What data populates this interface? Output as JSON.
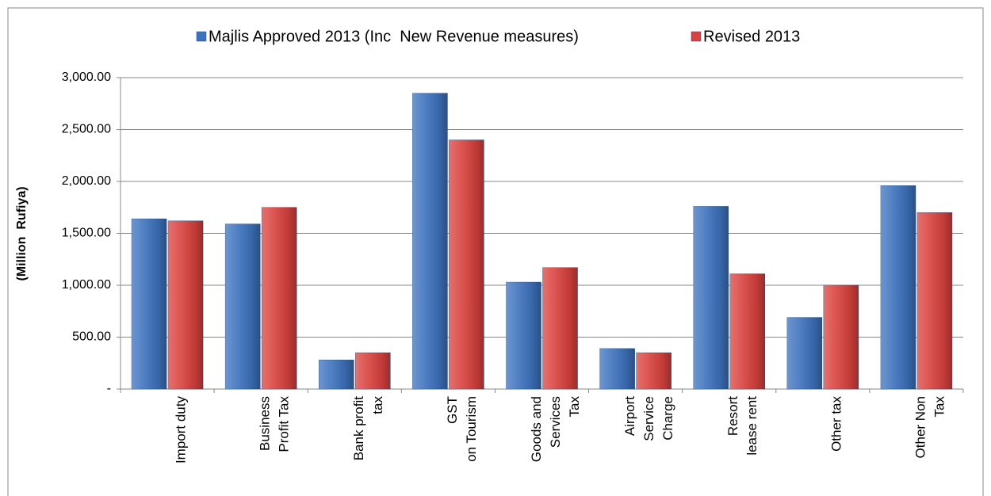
{
  "chart_data": {
    "type": "bar",
    "y_label": "(Million  Rufiya)",
    "categories": [
      [
        "Import duty"
      ],
      [
        "Business",
        "Profit Tax"
      ],
      [
        "Bank profit",
        "tax"
      ],
      [
        "GST",
        "on Tourism"
      ],
      [
        "Goods and",
        "Services",
        "Tax"
      ],
      [
        "Airport",
        "Service",
        "Charge"
      ],
      [
        "Resort",
        "lease rent"
      ],
      [
        "Other tax"
      ],
      [
        "Other Non",
        "Tax"
      ]
    ],
    "series": [
      {
        "name": "Majlis Approved 2013 (Inc  New Revenue measures)",
        "color": "#3d72bd",
        "values": [
          1640,
          1590,
          280,
          2850,
          1030,
          390,
          1760,
          690,
          1960
        ]
      },
      {
        "name": "Revised 2013",
        "color": "#d9423e",
        "values": [
          1620,
          1750,
          350,
          2400,
          1170,
          350,
          1110,
          1000,
          1700
        ]
      }
    ],
    "ylim": [
      0,
      3000
    ],
    "yticks": [
      {
        "value": 0,
        "label": "-"
      },
      {
        "value": 500,
        "label": "500.00"
      },
      {
        "value": 1000,
        "label": "1,000.00"
      },
      {
        "value": 1500,
        "label": "1,500.00"
      },
      {
        "value": 2000,
        "label": "2,000.00"
      },
      {
        "value": 2500,
        "label": "2,500.00"
      },
      {
        "value": 3000,
        "label": "3,000.00"
      }
    ],
    "grid": true
  }
}
